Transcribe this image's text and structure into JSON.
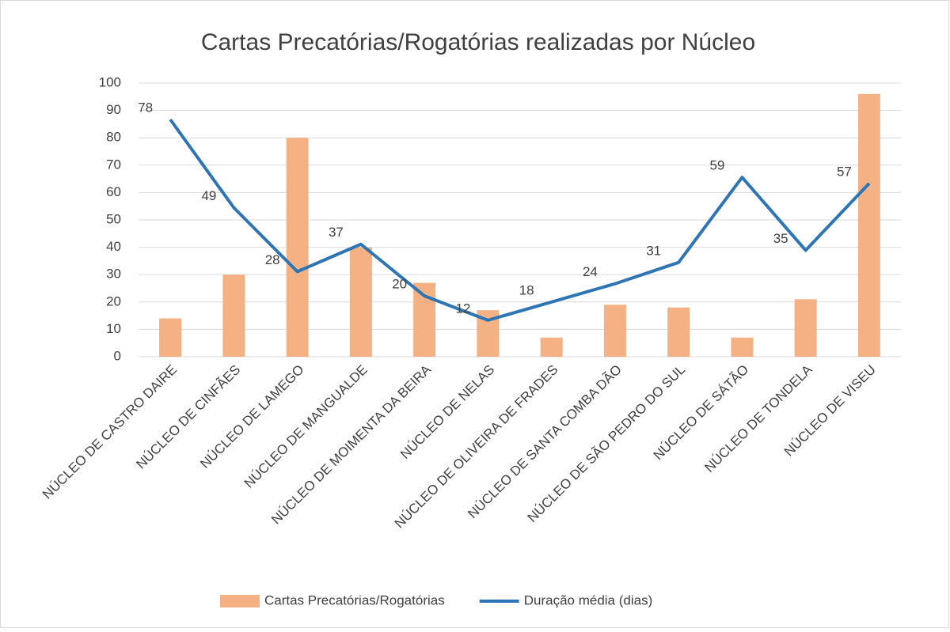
{
  "chart_data": {
    "type": "bar_line",
    "title": "Cartas Precatórias/Rogatórias realizadas por Núcleo",
    "categories": [
      "NÚCLEO DE CASTRO DAIRE",
      "NÚCLEO DE CINFÃES",
      "NÚCLEO DE LAMEGO",
      "NÚCLEO DE MANGUALDE",
      "NÚCLEO DE MOIMENTA DA BEIRA",
      "NÚCLEO DE NELAS",
      "NÚCLEO DE OLIVEIRA DE FRADES",
      "NÚCLEO DE SANTA COMBA DÃO",
      "NÚCLEO DE SÃO PEDRO DO SUL",
      "NÚCLEO DE SÁTÃO",
      "NÚCLEO DE TONDELA",
      "NÚCLEO DE VISEU"
    ],
    "series": [
      {
        "name": "Cartas Precatórias/Rogatórias",
        "type": "bar",
        "color": "#f4b183",
        "values": [
          14,
          30,
          80,
          40,
          27,
          17,
          7,
          19,
          18,
          7,
          21,
          96
        ]
      },
      {
        "name": "Duração média (dias)",
        "type": "line",
        "axis": "y2",
        "color": "#2e75b6",
        "values": [
          78,
          49,
          28,
          37,
          20,
          12,
          18,
          24,
          31,
          59,
          35,
          57
        ]
      }
    ],
    "ylim": [
      0,
      100
    ],
    "yticks": [
      0,
      10,
      20,
      30,
      40,
      50,
      60,
      70,
      80,
      90,
      100
    ],
    "y2lim": [
      0,
      90
    ],
    "grid": true,
    "legend": "bottom"
  }
}
